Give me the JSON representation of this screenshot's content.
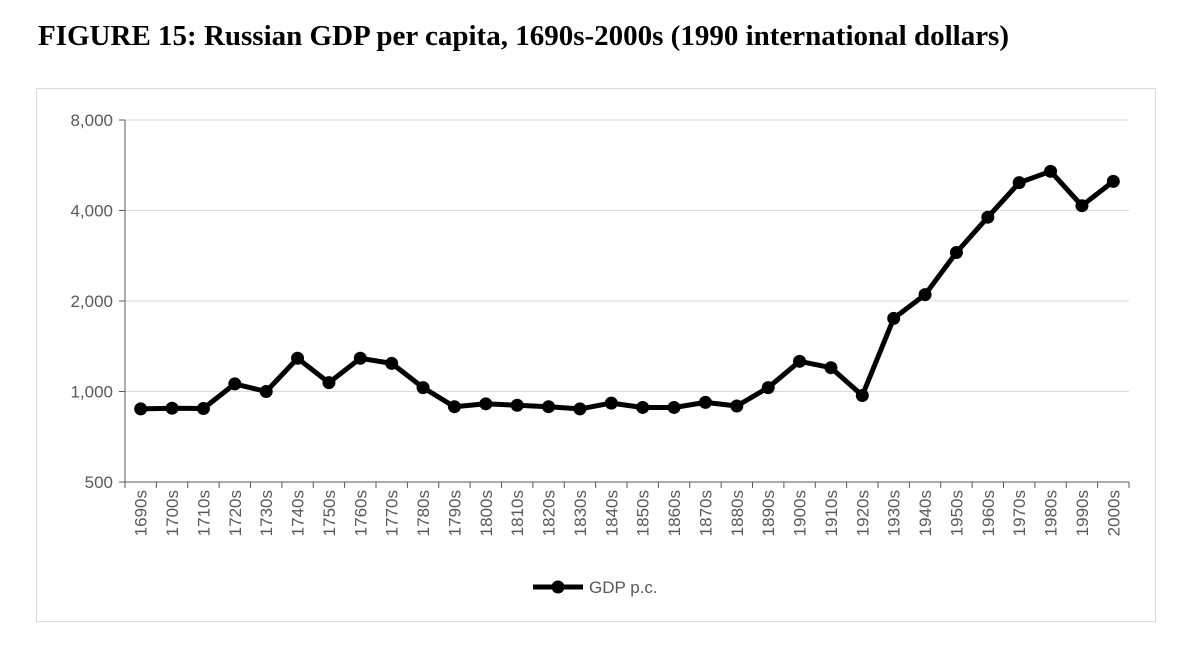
{
  "figure": {
    "title": "FIGURE 15: Russian GDP per capita, 1690s-2000s (1990 international dollars)"
  },
  "chart_data": {
    "type": "line",
    "title": "",
    "xlabel": "",
    "ylabel": "",
    "y_scale": "log2",
    "ylim": [
      500,
      8000
    ],
    "y_ticks": [
      500,
      1000,
      2000,
      4000,
      8000
    ],
    "y_tick_labels": [
      "500",
      "1,000",
      "2,000",
      "4,000",
      "8,000"
    ],
    "grid": "horizontal",
    "legend": "bottom",
    "categories": [
      "1690s",
      "1700s",
      "1710s",
      "1720s",
      "1730s",
      "1740s",
      "1750s",
      "1760s",
      "1770s",
      "1780s",
      "1790s",
      "1800s",
      "1810s",
      "1820s",
      "1830s",
      "1840s",
      "1850s",
      "1860s",
      "1870s",
      "1880s",
      "1890s",
      "1900s",
      "1910s",
      "1920s",
      "1930s",
      "1940s",
      "1950s",
      "1960s",
      "1970s",
      "1980s",
      "1990s",
      "2000s"
    ],
    "series": [
      {
        "name": "GDP p.c.",
        "color": "#000000",
        "values": [
          875,
          880,
          878,
          1060,
          1000,
          1290,
          1070,
          1290,
          1240,
          1030,
          890,
          910,
          900,
          890,
          875,
          915,
          885,
          885,
          920,
          895,
          1030,
          1260,
          1200,
          970,
          1750,
          2100,
          2900,
          3800,
          4950,
          5400,
          4150,
          5000
        ]
      }
    ]
  }
}
